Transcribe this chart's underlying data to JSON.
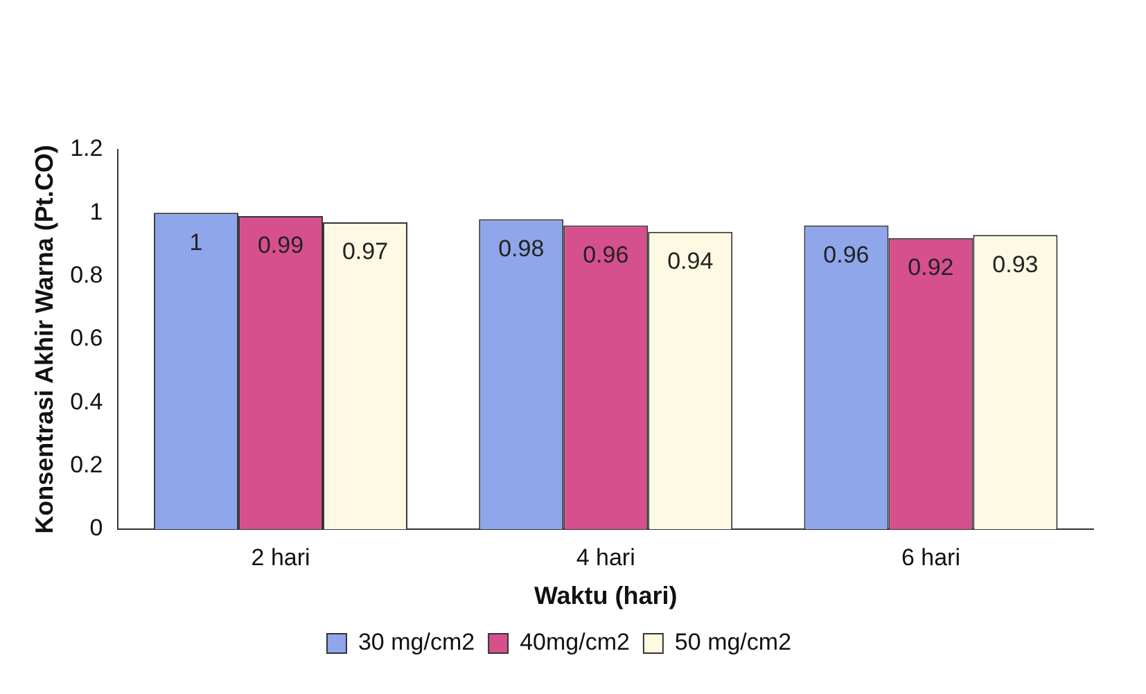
{
  "chart_data": {
    "type": "bar",
    "xlabel": "Waktu (hari)",
    "ylabel": "Konsentrasi Akhir Warna (Pt.CO)",
    "categories": [
      "2 hari",
      "4 hari",
      "6 hari"
    ],
    "series": [
      {
        "name": "30 mg/cm2",
        "color": "#8fa6ea",
        "values": [
          1,
          0.98,
          0.96
        ]
      },
      {
        "name": "40mg/cm2",
        "color": "#d6508e",
        "values": [
          0.99,
          0.96,
          0.92
        ]
      },
      {
        "name": "50 mg/cm2",
        "color": "#fdf9e2",
        "values": [
          0.97,
          0.94,
          0.93
        ]
      }
    ],
    "ylim": [
      0,
      1.2
    ],
    "yticks": [
      0,
      0.2,
      0.4,
      0.6,
      0.8,
      1,
      1.2
    ],
    "legend": "bottom",
    "data_labels": true
  }
}
